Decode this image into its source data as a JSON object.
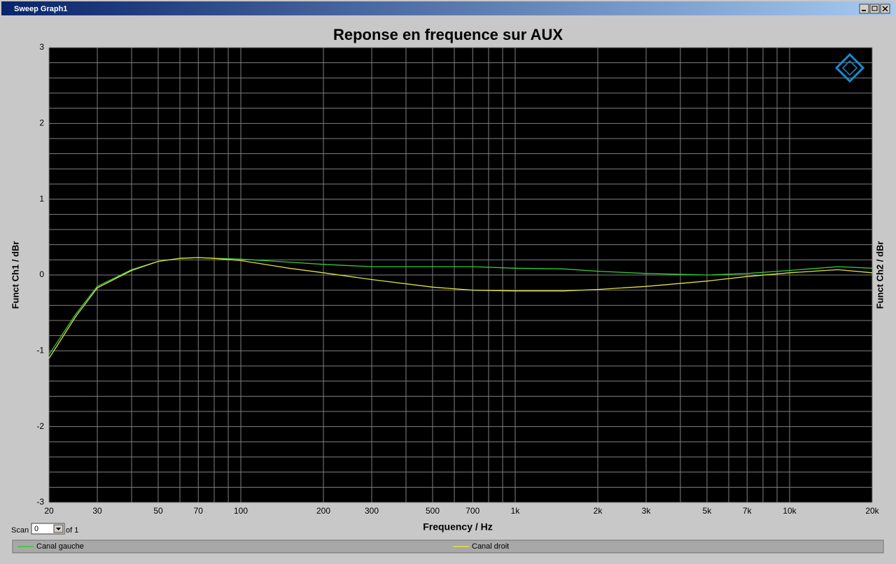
{
  "window": {
    "title": "Sweep Graph1"
  },
  "scan": {
    "label": "Scan",
    "value": "0",
    "of": "of 1"
  },
  "chart_data": {
    "type": "line",
    "title": "Reponse en frequence sur AUX",
    "x_label": "Frequency / Hz",
    "y_label": "Funct Ch1 / dBr",
    "y2_label": "Funct Ch2 / dBr",
    "x_scale": "log",
    "xlim": [
      20,
      20000
    ],
    "ylim": [
      -3,
      3
    ],
    "xticks": [
      20,
      30,
      50,
      70,
      100,
      200,
      300,
      500,
      700,
      {
        "value": 1000,
        "label": "1k"
      },
      {
        "value": 2000,
        "label": "2k"
      },
      {
        "value": 3000,
        "label": "3k"
      },
      {
        "value": 5000,
        "label": "5k"
      },
      {
        "value": 7000,
        "label": "7k"
      },
      {
        "value": 10000,
        "label": "10k"
      },
      {
        "value": 20000,
        "label": "20k"
      }
    ],
    "xgrid": [
      40,
      60,
      80,
      90,
      400,
      600,
      800,
      900,
      4000,
      6000,
      8000,
      9000
    ],
    "yticks": [
      -3,
      -2,
      -1,
      0,
      1,
      2,
      3
    ],
    "ygrid": [
      -2.8,
      -2.6,
      -2.4,
      -2.2,
      -1.8,
      -1.6,
      -1.4,
      -1.2,
      -0.8,
      -0.6,
      -0.4,
      -0.2,
      0.2,
      0.4,
      0.6,
      0.8,
      1.2,
      1.4,
      1.6,
      1.8,
      2.2,
      2.4,
      2.6,
      2.8
    ],
    "grid": true,
    "x": [
      20,
      25,
      30,
      40,
      50,
      60,
      70,
      80,
      100,
      150,
      200,
      300,
      500,
      700,
      1000,
      1500,
      2000,
      3000,
      5000,
      7000,
      10000,
      15000,
      20000
    ],
    "series": [
      {
        "name": "Canal gauche",
        "color": "#33cc33",
        "values": [
          -1.05,
          -0.52,
          -0.15,
          0.07,
          0.18,
          0.22,
          0.23,
          0.22,
          0.21,
          0.17,
          0.14,
          0.11,
          0.11,
          0.11,
          0.09,
          0.08,
          0.05,
          0.02,
          0.0,
          0.02,
          0.06,
          0.11,
          0.09
        ]
      },
      {
        "name": "Canal droit",
        "color": "#e0e040",
        "values": [
          -1.1,
          -0.55,
          -0.17,
          0.06,
          0.18,
          0.22,
          0.23,
          0.22,
          0.19,
          0.09,
          0.03,
          -0.06,
          -0.16,
          -0.2,
          -0.21,
          -0.21,
          -0.19,
          -0.15,
          -0.08,
          -0.02,
          0.03,
          0.07,
          0.03
        ]
      }
    ]
  }
}
